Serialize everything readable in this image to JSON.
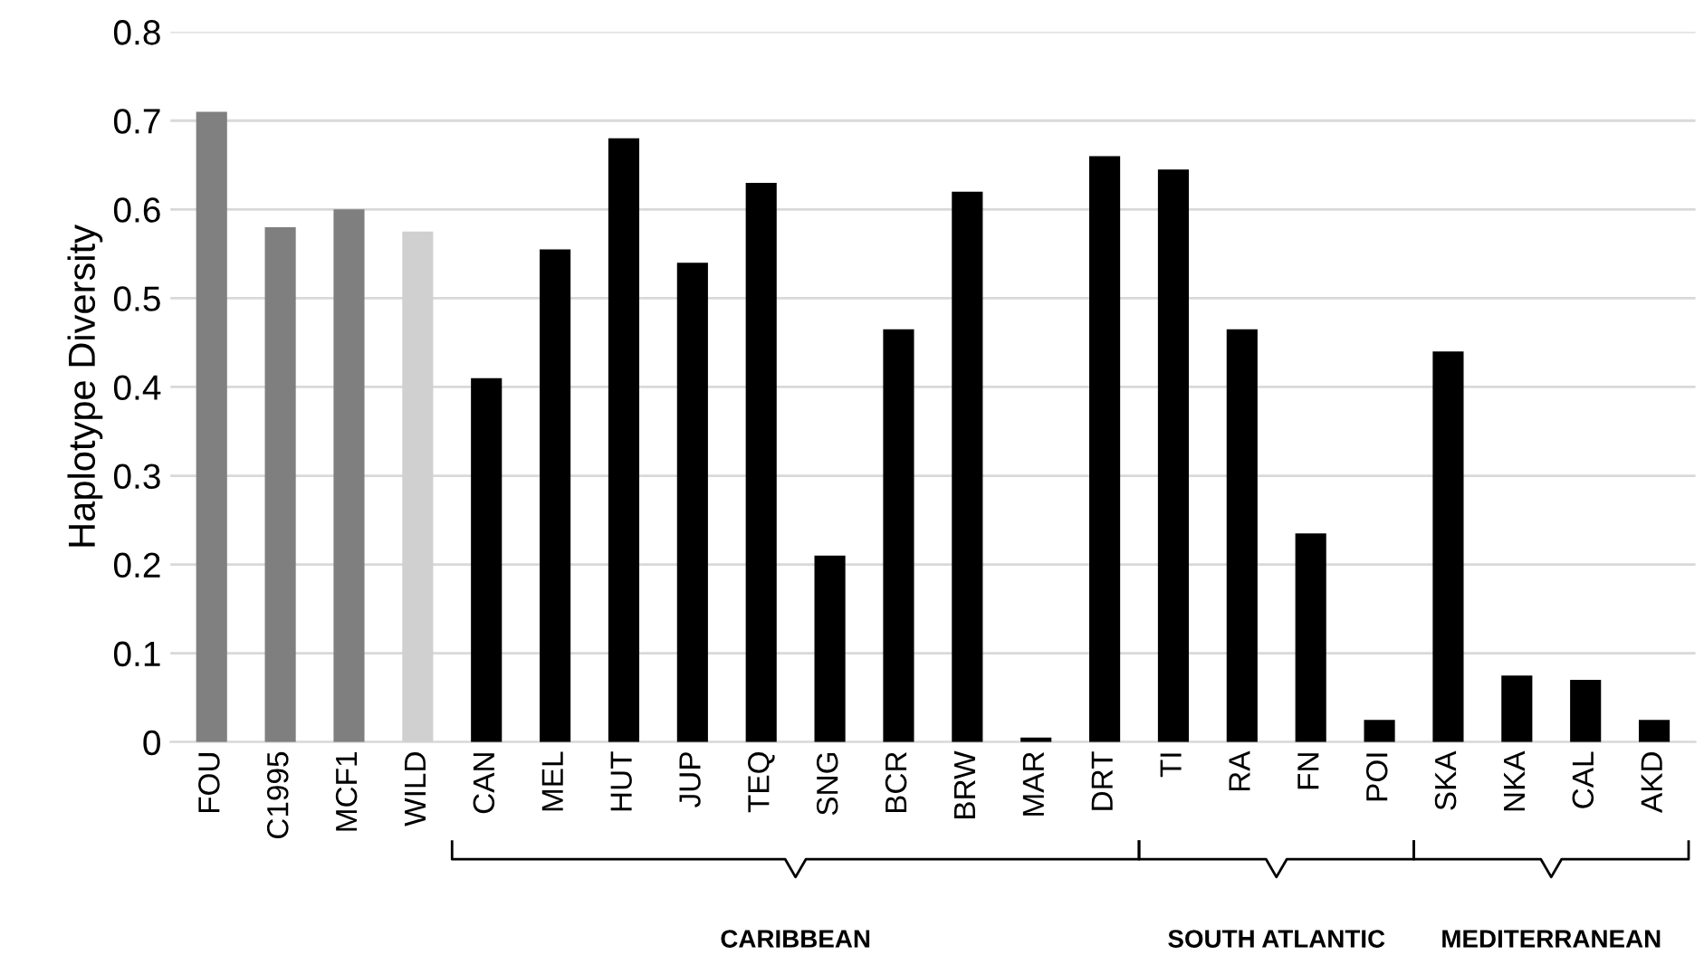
{
  "chart_data": {
    "type": "bar",
    "ylabel": "Haplotype Diversity",
    "categories": [
      "FOU",
      "C1995",
      "MCF1",
      "WILD",
      "CAN",
      "MEL",
      "HUT",
      "JUP",
      "TEQ",
      "SNG",
      "BCR",
      "BRW",
      "MAR",
      "DRT",
      "TI",
      "RA",
      "FN",
      "POI",
      "SKA",
      "NKA",
      "CAL",
      "AKD"
    ],
    "values": [
      0.71,
      0.58,
      0.6,
      0.575,
      0.41,
      0.555,
      0.68,
      0.54,
      0.63,
      0.21,
      0.465,
      0.62,
      0.005,
      0.66,
      0.645,
      0.465,
      0.235,
      0.025,
      0.44,
      0.075,
      0.07,
      0.025
    ],
    "colors": [
      "#808080",
      "#7f7f7f",
      "#7f7f7f",
      "#d0d0d0",
      "#000000",
      "#000000",
      "#000000",
      "#000000",
      "#000000",
      "#000000",
      "#000000",
      "#000000",
      "#000000",
      "#000000",
      "#000000",
      "#000000",
      "#000000",
      "#000000",
      "#000000",
      "#000000",
      "#000000",
      "#000000"
    ],
    "ylim": [
      0,
      0.8
    ],
    "yticks": [
      0,
      0.1,
      0.2,
      0.3,
      0.4,
      0.5,
      0.6,
      0.7,
      0.8
    ],
    "grid": "y",
    "annotations": [
      "CARIBBEAN",
      "SOUTH ATLANTIC",
      "MEDITERRANEAN"
    ]
  }
}
